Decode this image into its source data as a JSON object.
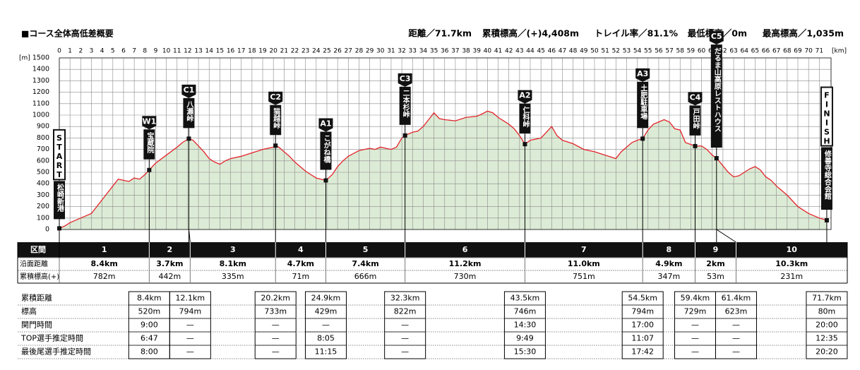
{
  "header": {
    "title": "■コース全体高低差概要",
    "stats": [
      "距離／71.7km",
      "累積標高／(+)4,408m",
      "トレイル率／81.1%",
      "最低標高／0m",
      "最高標高／1,035m"
    ]
  },
  "chart_data": {
    "type": "area",
    "x_unit": "[km]",
    "y_unit": "[m]",
    "xlim": [
      0,
      72.1
    ],
    "ylim": [
      0,
      1500
    ],
    "xticks": [
      0,
      1,
      2,
      3,
      4,
      5,
      6,
      7,
      8,
      9,
      10,
      11,
      12,
      13,
      14,
      15,
      16,
      17,
      18,
      19,
      20,
      21,
      22,
      23,
      24,
      25,
      26,
      27,
      28,
      29,
      30,
      31,
      32,
      33,
      34,
      35,
      36,
      37,
      38,
      39,
      40,
      41,
      42,
      43,
      44,
      45,
      46,
      47,
      48,
      49,
      50,
      51,
      52,
      53,
      54,
      55,
      56,
      57,
      58,
      59,
      60,
      61,
      62,
      63,
      64,
      65,
      66,
      67,
      68,
      69,
      70,
      71
    ],
    "yticks": [
      0,
      100,
      200,
      300,
      400,
      500,
      600,
      700,
      800,
      900,
      1000,
      1100,
      1200,
      1300,
      1400,
      1500
    ],
    "grid": true,
    "color": "#dcebd5",
    "line_color": "#e3242b",
    "x": [
      0,
      0.5,
      1,
      1.5,
      2,
      2.5,
      3,
      3.5,
      4,
      4.5,
      5,
      5.5,
      6,
      6.5,
      7,
      7.5,
      8,
      8.4,
      9,
      10,
      11,
      11.5,
      12.1,
      12.5,
      13,
      13.5,
      14,
      14.5,
      15,
      15.5,
      16,
      17,
      18,
      19,
      20,
      20.2,
      20.5,
      21,
      21.5,
      22,
      22.5,
      23,
      23.5,
      24,
      24.9,
      25.5,
      26,
      26.5,
      27,
      28,
      28.5,
      29,
      29.5,
      30,
      31,
      31.5,
      32,
      32.3,
      33,
      33.5,
      34,
      34.5,
      35,
      35.5,
      36,
      37,
      38,
      39,
      39.5,
      40,
      40.5,
      41,
      41.5,
      42,
      42.5,
      43,
      43.5,
      44,
      45,
      45.5,
      46,
      46.5,
      47,
      48,
      49,
      50,
      51,
      52,
      52.5,
      53,
      53.5,
      54,
      54.5,
      55,
      55.5,
      56,
      56.5,
      57,
      57.5,
      58,
      58.5,
      59.4,
      60,
      60.5,
      61,
      61.4,
      61.8,
      62.5,
      63,
      63.5,
      64,
      64.5,
      65,
      65.5,
      66,
      66.5,
      67,
      67.5,
      68,
      68.5,
      69,
      69.5,
      70,
      70.5,
      71,
      71.7
    ],
    "values": [
      10,
      30,
      60,
      80,
      100,
      120,
      140,
      200,
      260,
      320,
      380,
      440,
      430,
      420,
      450,
      440,
      480,
      520,
      580,
      650,
      720,
      760,
      794,
      780,
      730,
      680,
      620,
      590,
      570,
      600,
      620,
      640,
      670,
      700,
      720,
      733,
      720,
      680,
      640,
      590,
      550,
      510,
      480,
      450,
      429,
      480,
      550,
      600,
      640,
      690,
      700,
      710,
      700,
      720,
      700,
      720,
      800,
      822,
      850,
      860,
      900,
      960,
      1020,
      970,
      960,
      950,
      980,
      990,
      1010,
      1035,
      1020,
      980,
      950,
      920,
      880,
      820,
      746,
      780,
      800,
      850,
      900,
      820,
      780,
      750,
      700,
      680,
      650,
      620,
      680,
      720,
      760,
      780,
      794,
      870,
      920,
      940,
      960,
      940,
      880,
      870,
      760,
      729,
      730,
      700,
      650,
      623,
      580,
      500,
      460,
      470,
      500,
      530,
      550,
      520,
      460,
      430,
      380,
      340,
      300,
      250,
      200,
      170,
      140,
      120,
      100,
      80
    ],
    "checkpoints": [
      {
        "code": "START",
        "name": "松崎新港",
        "x": 0,
        "y": 10
      },
      {
        "code": "W1",
        "name": "宝蔵院",
        "x": 8.4,
        "y": 520
      },
      {
        "code": "C1",
        "name": "八瀬峠",
        "x": 12.1,
        "y": 794
      },
      {
        "code": "C2",
        "name": "猫越峠",
        "x": 20.2,
        "y": 733
      },
      {
        "code": "A1",
        "name": "こがね橋",
        "x": 24.9,
        "y": 429
      },
      {
        "code": "C3",
        "name": "二本杉峠",
        "x": 32.3,
        "y": 822
      },
      {
        "code": "A2",
        "name": "仁科峠",
        "x": 43.5,
        "y": 746
      },
      {
        "code": "A3",
        "name": "土肥駐車場",
        "x": 54.5,
        "y": 794
      },
      {
        "code": "C4",
        "name": "戸田峠",
        "x": 59.4,
        "y": 729
      },
      {
        "code": "C5",
        "name": "だるま山高原レストハウス",
        "x": 61.4,
        "y": 623
      },
      {
        "code": "FINISH",
        "name": "修善寺総合会館",
        "x": 71.7,
        "y": 80
      }
    ]
  },
  "segment_table": {
    "row_labels": [
      "区間",
      "沿面距離",
      "累積標高(+)"
    ],
    "columns": [
      [
        "1",
        "8.4km",
        "782m"
      ],
      [
        "2",
        "3.7km",
        "442m"
      ],
      [
        "3",
        "8.1km",
        "335m"
      ],
      [
        "4",
        "4.7km",
        "71m"
      ],
      [
        "5",
        "7.4km",
        "666m"
      ],
      [
        "6",
        "11.2km",
        "730m"
      ],
      [
        "7",
        "11.0km",
        "751m"
      ],
      [
        "8",
        "4.9km",
        "347m"
      ],
      [
        "9",
        "2km",
        "53m"
      ],
      [
        "10",
        "10.3km",
        "231m"
      ]
    ]
  },
  "checkpoint_table": {
    "row_labels": [
      "累積距離",
      "標高",
      "関門時間",
      "TOP選手推定時間",
      "最後尾選手推定時間"
    ],
    "columns": [
      [
        "8.4km",
        "520m",
        "9:00",
        "6:47",
        "8:00"
      ],
      [
        "12.1km",
        "794m",
        "—",
        "—",
        "—"
      ],
      [
        "20.2km",
        "733m",
        "—",
        "—",
        "—"
      ],
      [
        "24.9km",
        "429m",
        "—",
        "8:05",
        "11:15"
      ],
      [
        "32.3km",
        "822m",
        "—",
        "—",
        "—"
      ],
      [
        "43.5km",
        "746m",
        "14:30",
        "9:49",
        "15:30"
      ],
      [
        "54.5km",
        "794m",
        "17:00",
        "11:07",
        "17:42"
      ],
      [
        "59.4km",
        "729m",
        "—",
        "—",
        "—"
      ],
      [
        "61.4km",
        "623m",
        "—",
        "—",
        "—"
      ],
      [
        "71.7km",
        "80m",
        "20:00",
        "12:35",
        "20:20"
      ]
    ]
  }
}
